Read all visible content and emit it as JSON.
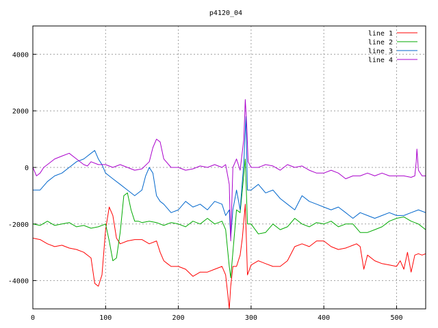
{
  "chart_data": {
    "type": "line",
    "title": "p4120_04",
    "xlabel": "",
    "ylabel": "",
    "xlim": [
      0,
      540
    ],
    "ylim": [
      -5000,
      5000
    ],
    "x_ticks": [
      0,
      100,
      200,
      300,
      400,
      500
    ],
    "y_ticks": [
      -4000,
      -2000,
      0,
      2000,
      4000
    ],
    "grid": true,
    "legend_position": "top-right",
    "series": [
      {
        "name": "line 1",
        "color": "#ff0000",
        "x": [
          0,
          10,
          20,
          30,
          40,
          50,
          60,
          70,
          80,
          85,
          90,
          95,
          100,
          105,
          110,
          115,
          120,
          130,
          140,
          150,
          160,
          170,
          175,
          180,
          185,
          190,
          200,
          210,
          220,
          230,
          240,
          250,
          260,
          265,
          268,
          270,
          272,
          275,
          280,
          285,
          288,
          292,
          295,
          300,
          310,
          320,
          330,
          340,
          350,
          360,
          370,
          380,
          390,
          400,
          410,
          420,
          430,
          440,
          445,
          450,
          455,
          460,
          470,
          480,
          490,
          500,
          505,
          510,
          515,
          520,
          525,
          530,
          535,
          540
        ],
        "y": [
          -2500,
          -2550,
          -2700,
          -2800,
          -2750,
          -2850,
          -2900,
          -3000,
          -3200,
          -4100,
          -4200,
          -3800,
          -2200,
          -1400,
          -1700,
          -2500,
          -2700,
          -2600,
          -2550,
          -2550,
          -2700,
          -2600,
          -3000,
          -3300,
          -3400,
          -3500,
          -3500,
          -3600,
          -3850,
          -3700,
          -3700,
          -3600,
          -3500,
          -3800,
          -4500,
          -5000,
          -4200,
          -3500,
          -3500,
          -3100,
          -2500,
          -1300,
          -3800,
          -3450,
          -3300,
          -3400,
          -3500,
          -3500,
          -3300,
          -2800,
          -2700,
          -2800,
          -2600,
          -2600,
          -2800,
          -2900,
          -2850,
          -2750,
          -2700,
          -2800,
          -3600,
          -3100,
          -3300,
          -3400,
          -3450,
          -3500,
          -3300,
          -3600,
          -3000,
          -3700,
          -3100,
          -3050,
          -3100,
          -3050
        ]
      },
      {
        "name": "line 2",
        "color": "#00aa00",
        "x": [
          0,
          10,
          20,
          30,
          40,
          50,
          60,
          70,
          80,
          90,
          100,
          105,
          110,
          115,
          120,
          125,
          130,
          135,
          140,
          145,
          150,
          160,
          170,
          180,
          190,
          200,
          210,
          220,
          230,
          240,
          250,
          260,
          265,
          270,
          272,
          275,
          280,
          285,
          288,
          292,
          295,
          300,
          310,
          320,
          330,
          340,
          350,
          360,
          370,
          380,
          390,
          400,
          410,
          420,
          430,
          440,
          450,
          460,
          470,
          480,
          490,
          500,
          510,
          520,
          530,
          540
        ],
        "y": [
          -2000,
          -2050,
          -1900,
          -2050,
          -2000,
          -1950,
          -2100,
          -2050,
          -2150,
          -2100,
          -2000,
          -2600,
          -3300,
          -3200,
          -2300,
          -1000,
          -900,
          -1500,
          -1900,
          -1900,
          -1950,
          -1900,
          -1950,
          -2050,
          -1950,
          -2000,
          -2100,
          -1900,
          -2000,
          -1800,
          -2000,
          -1900,
          -2200,
          -3500,
          -3900,
          -3000,
          -1500,
          -1600,
          -800,
          300,
          -2000,
          -2000,
          -2350,
          -2300,
          -2000,
          -2200,
          -2100,
          -1800,
          -2000,
          -2100,
          -1950,
          -2000,
          -1900,
          -2100,
          -2000,
          -2000,
          -2300,
          -2300,
          -2200,
          -2100,
          -1900,
          -1800,
          -1750,
          -1900,
          -2000,
          -2200
        ]
      },
      {
        "name": "line 3",
        "color": "#0066cc",
        "x": [
          0,
          10,
          20,
          30,
          40,
          50,
          60,
          70,
          80,
          85,
          90,
          95,
          100,
          110,
          120,
          130,
          140,
          150,
          155,
          160,
          165,
          170,
          175,
          180,
          190,
          200,
          210,
          220,
          230,
          240,
          250,
          260,
          265,
          270,
          272,
          275,
          280,
          285,
          290,
          293,
          295,
          300,
          310,
          320,
          330,
          340,
          350,
          360,
          370,
          380,
          390,
          400,
          410,
          420,
          430,
          440,
          450,
          460,
          470,
          480,
          490,
          500,
          510,
          520,
          530,
          540
        ],
        "y": [
          -800,
          -800,
          -500,
          -300,
          -200,
          0,
          200,
          300,
          500,
          600,
          300,
          100,
          -200,
          -400,
          -600,
          -800,
          -1000,
          -800,
          -300,
          0,
          -200,
          -1000,
          -1200,
          -1300,
          -1600,
          -1500,
          -1200,
          -1400,
          -1300,
          -1500,
          -1200,
          -1300,
          -1700,
          -1500,
          -2500,
          -1500,
          -800,
          -1500,
          200,
          1800,
          -800,
          -800,
          -600,
          -900,
          -800,
          -1100,
          -1300,
          -1500,
          -1000,
          -1200,
          -1300,
          -1400,
          -1500,
          -1400,
          -1600,
          -1800,
          -1600,
          -1700,
          -1800,
          -1700,
          -1600,
          -1700,
          -1700,
          -1600,
          -1500,
          -1600
        ]
      },
      {
        "name": "line 4",
        "color": "#aa00cc",
        "x": [
          0,
          5,
          10,
          15,
          20,
          30,
          40,
          50,
          60,
          70,
          75,
          80,
          90,
          100,
          110,
          120,
          130,
          140,
          150,
          160,
          165,
          170,
          175,
          180,
          190,
          200,
          210,
          220,
          230,
          240,
          250,
          260,
          265,
          270,
          272,
          275,
          280,
          285,
          290,
          292,
          294,
          296,
          300,
          310,
          320,
          330,
          340,
          350,
          360,
          370,
          380,
          390,
          400,
          410,
          420,
          430,
          440,
          450,
          460,
          470,
          480,
          490,
          500,
          510,
          520,
          525,
          527,
          528,
          530,
          535,
          540
        ],
        "y": [
          0,
          -300,
          -200,
          0,
          100,
          300,
          400,
          500,
          300,
          100,
          50,
          200,
          100,
          100,
          0,
          100,
          0,
          -100,
          -50,
          200,
          700,
          1000,
          900,
          300,
          0,
          0,
          -100,
          -50,
          50,
          0,
          100,
          0,
          100,
          -600,
          -2600,
          0,
          300,
          -100,
          1000,
          2400,
          1500,
          200,
          0,
          0,
          100,
          50,
          -100,
          100,
          0,
          50,
          -100,
          -200,
          -200,
          -100,
          -200,
          -400,
          -300,
          -300,
          -200,
          -300,
          -200,
          -300,
          -300,
          -300,
          -350,
          -300,
          200,
          650,
          -100,
          -300,
          -300
        ]
      }
    ]
  }
}
